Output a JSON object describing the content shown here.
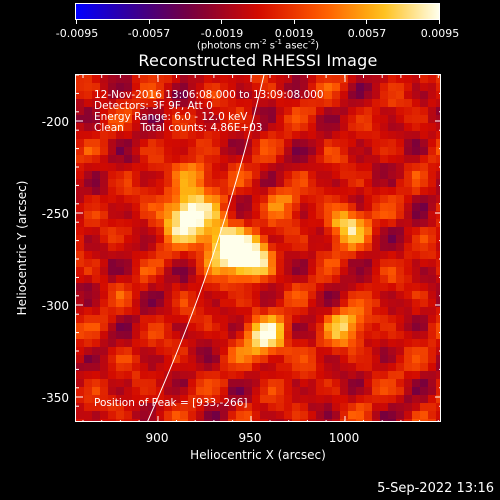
{
  "colorbar": {
    "tick_labels": [
      "-0.0095",
      "-0.0057",
      "-0.0019",
      "0.0019",
      "0.0057",
      "0.0095"
    ],
    "units_text": "(photons cm",
    "units_exp1": "-2",
    "units_mid": " s",
    "units_exp2": "-1",
    "units_end": " asec",
    "units_exp3": "-2",
    "units_close": ")"
  },
  "title": "Reconstructed RHESSI Image",
  "info": {
    "line1": "12-Nov-2016 13:06:08.000 to 13:09:08.000",
    "line2": "Detectors: 3F 9F, Att 0",
    "line3": "Energy Range: 6.0 - 12.0 keV",
    "line4": "Clean     Total counts: 4.86E+03",
    "peak": "Position of Peak = [933,-266]"
  },
  "axes": {
    "x_title": "Heliocentric X (arcsec)",
    "y_title": "Heliocentric Y (arcsec)",
    "x_ticks": [
      "900",
      "950",
      "1000"
    ],
    "y_ticks": [
      "-200",
      "-250",
      "-300",
      "-350"
    ]
  },
  "datestamp": "5-Sep-2022 13:16",
  "colors": {
    "background": "#000000",
    "frame": "#ffffff"
  }
}
